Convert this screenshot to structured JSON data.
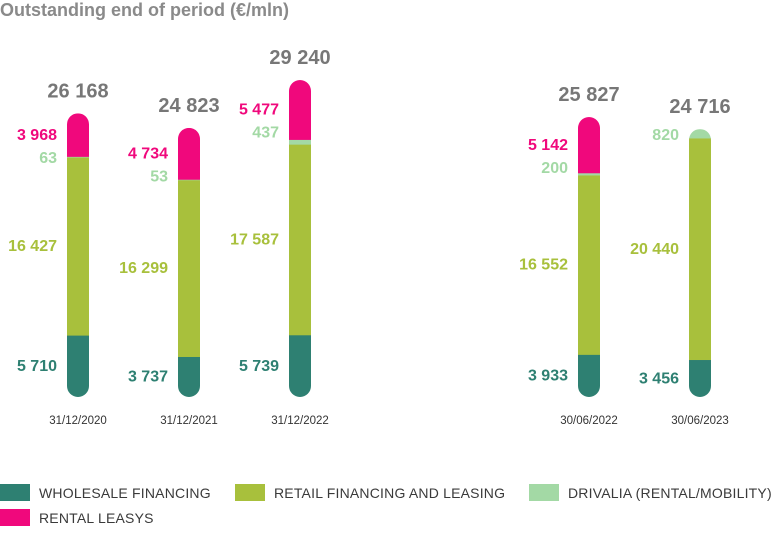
{
  "chart_data": {
    "type": "bar",
    "stacked": true,
    "title": "Outstanding end of period (€/mln)",
    "categories": [
      "31/12/2020",
      "31/12/2021",
      "31/12/2022",
      "30/06/2022",
      "30/06/2023"
    ],
    "series": [
      {
        "name": "WHOLESALE FINANCING",
        "color": "#2e8072",
        "values": [
          5710,
          3737,
          5739,
          3933,
          3456
        ],
        "labels": [
          "5 710",
          "3 737",
          "5 739",
          "3 933",
          "3 456"
        ]
      },
      {
        "name": "RETAIL FINANCING AND LEASING",
        "color": "#a8c03c",
        "values": [
          16427,
          16299,
          17587,
          16552,
          20440
        ],
        "labels": [
          "16 427",
          "16 299",
          "17 587",
          "16 552",
          "20 440"
        ]
      },
      {
        "name": "DRIVALIA (RENTAL/MOBILITY)",
        "color": "#a3d9a5",
        "values": [
          63,
          53,
          437,
          200,
          820
        ],
        "labels": [
          "63",
          "53",
          "437",
          "200",
          "820"
        ]
      },
      {
        "name": "RENTAL LEASYS",
        "color": "#f0087c",
        "values": [
          3968,
          4734,
          5477,
          5142,
          0
        ],
        "labels": [
          "3 968",
          "4 734",
          "5 477",
          "5 142",
          ""
        ]
      }
    ],
    "totals": [
      "26 168",
      "24 823",
      "29 240",
      "25 827",
      "24 716"
    ],
    "legend_position": "bottom",
    "grid": false
  }
}
